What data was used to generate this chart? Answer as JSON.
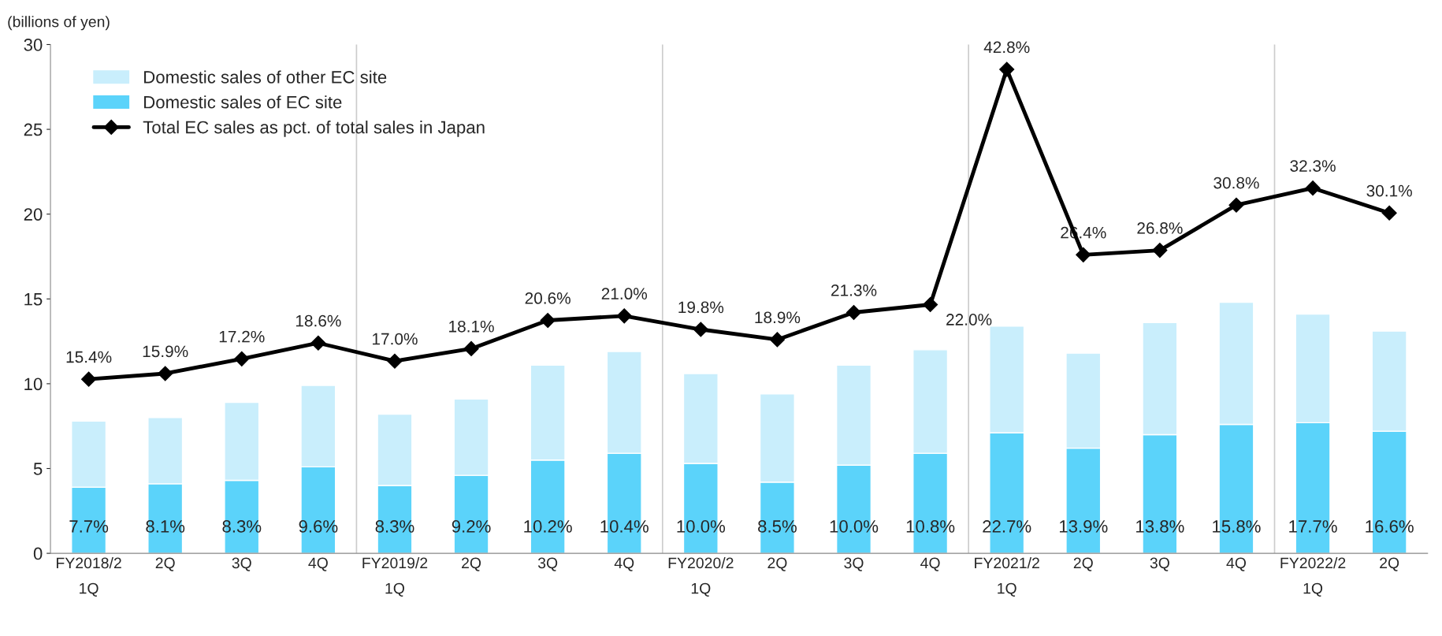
{
  "chart_data": {
    "type": "bar",
    "stacked": true,
    "ylabel": "(billions of yen)",
    "categories": [
      "FY2018/2\n1Q",
      "2Q",
      "3Q",
      "4Q",
      "FY2019/2\n1Q",
      "2Q",
      "3Q",
      "4Q",
      "FY2020/2\n1Q",
      "2Q",
      "3Q",
      "4Q",
      "FY2021/2\n1Q",
      "2Q",
      "3Q",
      "4Q",
      "FY2022/2\n1Q",
      "2Q"
    ],
    "series": [
      {
        "name": "Domestic sales of EC site",
        "color": "#5bd3fa",
        "values": [
          3.9,
          4.1,
          4.3,
          5.1,
          4.0,
          4.6,
          5.5,
          5.9,
          5.3,
          4.2,
          5.2,
          5.9,
          7.1,
          6.2,
          7.0,
          7.6,
          7.7,
          7.2
        ]
      },
      {
        "name": "Domestic sales of other EC site",
        "color": "#c9eefc",
        "values": [
          3.9,
          3.9,
          4.6,
          4.8,
          4.2,
          4.5,
          5.6,
          6.0,
          5.3,
          5.2,
          5.9,
          6.1,
          6.3,
          5.6,
          6.6,
          7.2,
          6.4,
          5.9
        ]
      },
      {
        "name": "Total EC sales as pct. of total sales in Japan",
        "type": "line",
        "axis": "y2",
        "color": "#000000",
        "marker": "diamond",
        "line_style": "solid",
        "values": [
          15.4,
          15.9,
          17.2,
          18.6,
          17.0,
          18.1,
          20.6,
          21.0,
          19.8,
          18.9,
          21.3,
          22.0,
          42.8,
          26.4,
          26.8,
          30.8,
          32.3,
          30.1
        ],
        "value_labels": [
          "15.4%",
          "15.9%",
          "17.2%",
          "18.6%",
          "17.0%",
          "18.1%",
          "20.6%",
          "21.0%",
          "19.8%",
          "18.9%",
          "21.3%",
          "22.0%",
          "42.8%",
          "26.4%",
          "26.8%",
          "30.8%",
          "32.3%",
          "30.1%"
        ]
      }
    ],
    "ylim": [
      0,
      30
    ],
    "yticks": [
      0,
      5,
      10,
      15,
      20,
      25,
      30
    ],
    "y2lim": [
      0,
      45
    ],
    "annotations": [
      "7.7%",
      "8.1%",
      "8.3%",
      "9.6%",
      "8.3%",
      "9.2%",
      "10.2%",
      "10.4%",
      "10.0%",
      "8.5%",
      "10.0%",
      "10.8%",
      "22.7%",
      "13.9%",
      "13.8%",
      "15.8%",
      "17.7%",
      "16.6%"
    ],
    "grid": false,
    "legend": "top left"
  }
}
